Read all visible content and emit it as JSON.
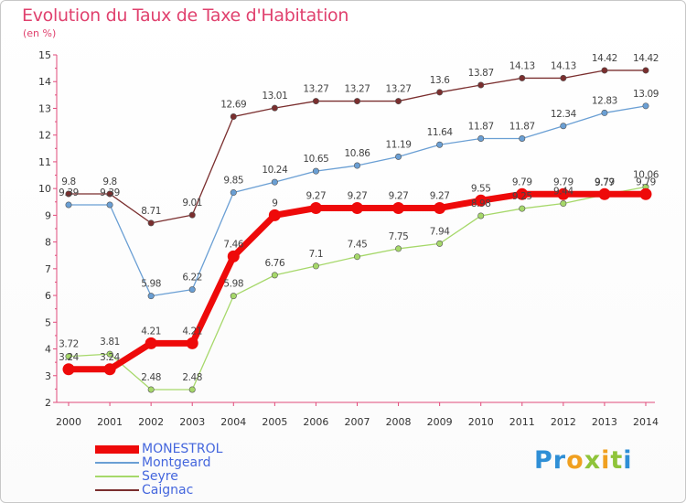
{
  "page": {
    "title": "Evolution du Taux de Taxe d'Habitation",
    "subtitle": "(en %)"
  },
  "logo": {
    "text": "Proxiti",
    "letters": [
      {
        "ch": "P",
        "color": "#2f8fd6"
      },
      {
        "ch": "r",
        "color": "#2f8fd6"
      },
      {
        "ch": "o",
        "color": "#f0a020"
      },
      {
        "ch": "x",
        "color": "#8fc43a"
      },
      {
        "ch": "i",
        "color": "#f0a020"
      },
      {
        "ch": "t",
        "color": "#8fc43a"
      },
      {
        "ch": "i",
        "color": "#2f8fd6"
      }
    ]
  },
  "chart_data": {
    "type": "line",
    "title": "Evolution du Taux de Taxe d'Habitation",
    "ylabel": "(en %)",
    "xlabel": "",
    "ylim": [
      2,
      15
    ],
    "yticks": [
      2,
      3,
      4,
      5,
      6,
      7,
      8,
      9,
      10,
      11,
      12,
      13,
      14,
      15
    ],
    "categories": [
      "2000",
      "2001",
      "2002",
      "2003",
      "2004",
      "2005",
      "2006",
      "2007",
      "2008",
      "2009",
      "2010",
      "2011",
      "2012",
      "2013",
      "2014"
    ],
    "grid": false,
    "legend": "bottom-left",
    "series": [
      {
        "name": "Caignac",
        "color": "#7a2e2e",
        "width": 1.3,
        "dot_r": 3.2,
        "values": [
          9.8,
          9.8,
          8.71,
          9.01,
          12.69,
          13.01,
          13.27,
          13.27,
          13.27,
          13.6,
          13.87,
          14.13,
          14.13,
          14.42,
          14.42
        ],
        "labels": [
          "9.8",
          "9.8",
          "8.71",
          "9.01",
          "12.69",
          "13.01",
          "13.27",
          "13.27",
          "13.27",
          "13.6",
          "13.87",
          "14.13",
          "14.13",
          "14.42",
          "14.42"
        ]
      },
      {
        "name": "Montgeard",
        "color": "#6a9fd4",
        "width": 1.3,
        "dot_r": 3.2,
        "values": [
          9.39,
          9.39,
          5.98,
          6.22,
          9.85,
          10.24,
          10.65,
          10.86,
          11.19,
          11.64,
          11.87,
          11.87,
          12.34,
          12.83,
          13.09
        ],
        "labels": [
          "9.39",
          "9.39",
          "5.98",
          "6.22",
          "9.85",
          "10.24",
          "10.65",
          "10.86",
          "11.19",
          "11.64",
          "11.87",
          "11.87",
          "12.34",
          "12.83",
          "13.09"
        ]
      },
      {
        "name": "Seyre",
        "color": "#a6d86a",
        "width": 1.3,
        "dot_r": 3.2,
        "values": [
          3.72,
          3.81,
          2.48,
          2.48,
          5.98,
          6.76,
          7.1,
          7.45,
          7.75,
          7.94,
          8.98,
          9.25,
          9.44,
          9.77,
          10.06
        ],
        "labels": [
          "3.72",
          "3.81",
          "2.48",
          "2.48",
          "5.98",
          "6.76",
          "7.1",
          "7.45",
          "7.75",
          "7.94",
          "8.98",
          "9.25",
          "9.44",
          "9.77",
          "10.06"
        ]
      },
      {
        "name": "MONESTROL",
        "color": "#ee0a0a",
        "width": 7,
        "dot_r": 6.5,
        "values": [
          3.24,
          3.24,
          4.21,
          4.21,
          7.46,
          9,
          9.27,
          9.27,
          9.27,
          9.27,
          9.55,
          9.79,
          9.79,
          9.79,
          9.79
        ],
        "labels": [
          "3.24",
          "3.24",
          "4.21",
          "4.21",
          "7.46",
          "9",
          "9.27",
          "9.27",
          "9.27",
          "9.27",
          "9.55",
          "9.79",
          "9.79",
          "9.79",
          "9.79"
        ]
      }
    ],
    "legend_entries": [
      {
        "name": "MONESTROL",
        "color": "#ee0a0a",
        "thickness": 9
      },
      {
        "name": "Montgeard",
        "color": "#6a9fd4",
        "thickness": 2
      },
      {
        "name": "Seyre",
        "color": "#a6d86a",
        "thickness": 2
      },
      {
        "name": "Caignac",
        "color": "#7a2e2e",
        "thickness": 2
      }
    ]
  }
}
